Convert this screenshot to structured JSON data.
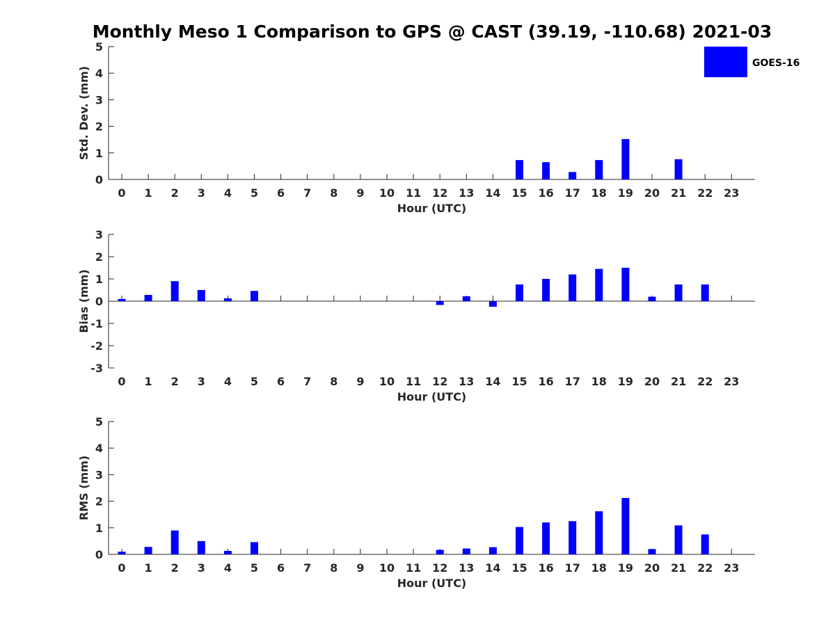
{
  "title": "Monthly Meso 1 Comparison to GPS @ CAST (39.19, -110.68) 2021-03",
  "legend": {
    "label": "GOES-16",
    "color": "#0000ff",
    "placement": "top-right"
  },
  "chart_data": [
    {
      "type": "bar",
      "name": "std-dev",
      "ylabel": "Std. Dev. (mm)",
      "xlabel": "Hour (UTC)",
      "ylim": [
        0,
        5
      ],
      "yticks": [
        "0",
        "1",
        "2",
        "3",
        "4",
        "5"
      ],
      "categories": [
        "0",
        "1",
        "2",
        "3",
        "4",
        "5",
        "6",
        "7",
        "8",
        "9",
        "10",
        "11",
        "12",
        "13",
        "14",
        "15",
        "16",
        "17",
        "18",
        "19",
        "20",
        "21",
        "22",
        "23"
      ],
      "values": [
        null,
        null,
        null,
        null,
        null,
        null,
        null,
        null,
        null,
        null,
        null,
        null,
        null,
        null,
        null,
        0.73,
        0.65,
        0.28,
        0.73,
        1.52,
        null,
        0.76,
        null,
        null
      ]
    },
    {
      "type": "bar",
      "name": "bias",
      "ylabel": "Bias (mm)",
      "xlabel": "Hour (UTC)",
      "ylim": [
        -3,
        3
      ],
      "yticks": [
        "-3",
        "-2",
        "-1",
        "0",
        "1",
        "2",
        "3"
      ],
      "categories": [
        "0",
        "1",
        "2",
        "3",
        "4",
        "5",
        "6",
        "7",
        "8",
        "9",
        "10",
        "11",
        "12",
        "13",
        "14",
        "15",
        "16",
        "17",
        "18",
        "19",
        "20",
        "21",
        "22",
        "23"
      ],
      "values": [
        0.1,
        0.28,
        0.9,
        0.5,
        0.13,
        0.46,
        null,
        null,
        null,
        null,
        null,
        null,
        -0.17,
        0.22,
        -0.25,
        0.75,
        1.0,
        1.2,
        1.45,
        1.5,
        0.2,
        0.75,
        0.75,
        null
      ]
    },
    {
      "type": "bar",
      "name": "rms",
      "ylabel": "RMS (mm)",
      "xlabel": "Hour (UTC)",
      "ylim": [
        0,
        5
      ],
      "yticks": [
        "0",
        "1",
        "2",
        "3",
        "4",
        "5"
      ],
      "categories": [
        "0",
        "1",
        "2",
        "3",
        "4",
        "5",
        "6",
        "7",
        "8",
        "9",
        "10",
        "11",
        "12",
        "13",
        "14",
        "15",
        "16",
        "17",
        "18",
        "19",
        "20",
        "21",
        "22",
        "23"
      ],
      "values": [
        0.1,
        0.28,
        0.9,
        0.5,
        0.13,
        0.46,
        null,
        null,
        null,
        null,
        null,
        null,
        0.17,
        0.22,
        0.27,
        1.03,
        1.2,
        1.25,
        1.62,
        2.12,
        0.2,
        1.09,
        0.75,
        null
      ]
    }
  ]
}
